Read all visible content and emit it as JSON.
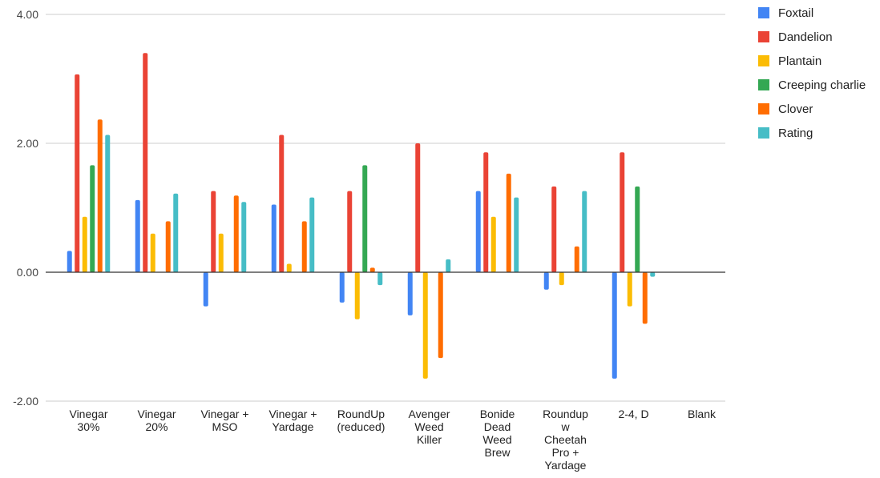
{
  "chart_data": {
    "type": "bar",
    "categories": [
      [
        "Vinegar",
        "30%"
      ],
      [
        "Vinegar",
        "20%"
      ],
      [
        "Vinegar +",
        "MSO"
      ],
      [
        "Vinegar +",
        "Yardage"
      ],
      [
        "RoundUp",
        "(reduced)"
      ],
      [
        "Avenger",
        "Weed",
        "Killer"
      ],
      [
        "Bonide",
        "Dead",
        "Weed",
        "Brew"
      ],
      [
        "Roundup",
        "w",
        "Cheetah",
        "Pro +",
        "Yardage"
      ],
      [
        "2-4, D"
      ],
      [
        "Blank"
      ]
    ],
    "series": [
      {
        "name": "Foxtail",
        "color": "#4285F4",
        "values": [
          0.33,
          1.12,
          -0.53,
          1.05,
          -0.47,
          -0.67,
          1.26,
          -0.27,
          -1.65,
          null
        ]
      },
      {
        "name": "Dandelion",
        "color": "#EA4335",
        "values": [
          3.07,
          3.4,
          1.26,
          2.13,
          1.26,
          2.0,
          1.86,
          1.33,
          1.86,
          null
        ]
      },
      {
        "name": "Plantain",
        "color": "#FBBC04",
        "values": [
          0.86,
          0.6,
          0.6,
          0.13,
          -0.73,
          -1.65,
          0.86,
          -0.2,
          -0.53,
          null
        ]
      },
      {
        "name": "Creeping charlie",
        "color": "#34A853",
        "values": [
          1.66,
          null,
          null,
          null,
          1.66,
          null,
          null,
          null,
          1.33,
          null
        ]
      },
      {
        "name": "Clover",
        "color": "#FF6D01",
        "values": [
          2.37,
          0.79,
          1.19,
          0.79,
          0.07,
          -1.33,
          1.53,
          0.4,
          -0.8,
          null
        ]
      },
      {
        "name": "Rating",
        "color": "#46BDC6",
        "values": [
          2.13,
          1.22,
          1.09,
          1.16,
          -0.2,
          0.2,
          1.16,
          1.26,
          -0.07,
          null
        ]
      }
    ],
    "ylim": [
      -2,
      4
    ],
    "yticks": [
      "-2.00",
      "0.00",
      "2.00",
      "4.00"
    ],
    "ytick_values": [
      -2,
      0,
      2,
      4
    ],
    "grid": true,
    "legend_position": "right",
    "title": "",
    "xlabel": "",
    "ylabel": ""
  }
}
